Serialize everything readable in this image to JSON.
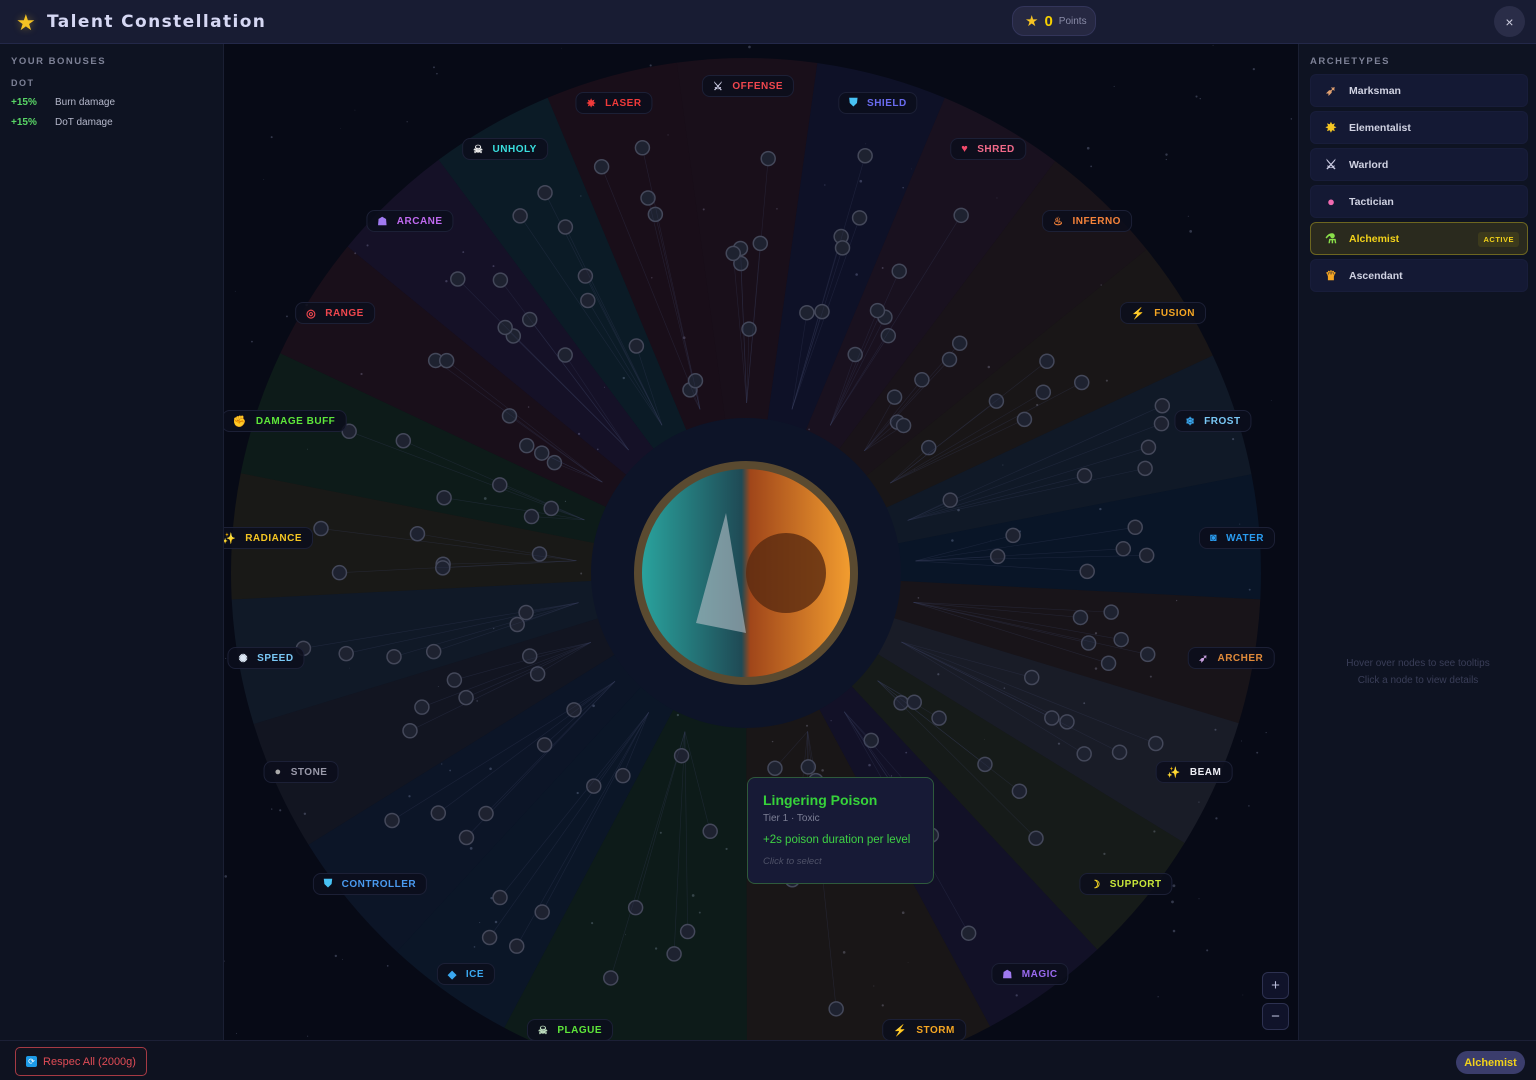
{
  "header": {
    "title": "Talent Constellation",
    "logo_icon": "star-icon",
    "points_value": "0",
    "points_label": "Points",
    "close_label": "×"
  },
  "bonuses": {
    "title": "YOUR BONUSES",
    "group": "DOT",
    "items": [
      {
        "value": "+15%",
        "label": "Burn damage"
      },
      {
        "value": "+15%",
        "label": "DoT damage"
      }
    ]
  },
  "categories": [
    {
      "name": "OFFENSE",
      "color": "#f0474e",
      "icon": "crossed-swords-icon",
      "glyph": "⚔",
      "icon_color": "#c9c9e0"
    },
    {
      "name": "SHIELD",
      "color": "#6a6cf0",
      "icon": "shield-icon",
      "glyph": "⛊",
      "icon_color": "#48c2f4"
    },
    {
      "name": "SHRED",
      "color": "#f26a8a",
      "icon": "heart-icon",
      "glyph": "♥",
      "icon_color": "#f24a6a"
    },
    {
      "name": "INFERNO",
      "color": "#f5833a",
      "icon": "fire-icon",
      "glyph": "♨",
      "icon_color": "#f5833a"
    },
    {
      "name": "FUSION",
      "color": "#f5a623",
      "icon": "lightning-icon",
      "glyph": "⚡",
      "icon_color": "#f5c623"
    },
    {
      "name": "FROST",
      "color": "#7ac8f5",
      "icon": "snowflake-icon",
      "glyph": "❄",
      "icon_color": "#3aa8f0"
    },
    {
      "name": "WATER",
      "color": "#2a9cf0",
      "icon": "wave-icon",
      "glyph": "◙",
      "icon_color": "#2a9cf0"
    },
    {
      "name": "ARCHER",
      "color": "#e08a3a",
      "icon": "bow-arrow-icon",
      "glyph": "➶",
      "icon_color": "#c9a0e0"
    },
    {
      "name": "BEAM",
      "color": "#eeeef5",
      "icon": "sparkles-icon",
      "glyph": "✨",
      "icon_color": "#f5c623"
    },
    {
      "name": "SUPPORT",
      "color": "#c8e63a",
      "icon": "banana-icon",
      "glyph": "☽",
      "icon_color": "#f5d623"
    },
    {
      "name": "MAGIC",
      "color": "#9a6af0",
      "icon": "wizard-icon",
      "glyph": "☗",
      "icon_color": "#a07af0"
    },
    {
      "name": "STORM",
      "color": "#f5a623",
      "icon": "lightning-icon",
      "glyph": "⚡",
      "icon_color": "#f5c623"
    },
    {
      "name": "PLAGUE",
      "color": "#5ee63a",
      "icon": "skull-icon",
      "glyph": "☠",
      "icon_color": "#c0e0c0"
    },
    {
      "name": "ICE",
      "color": "#3aa8f0",
      "icon": "ice-cube-icon",
      "glyph": "◆",
      "icon_color": "#3aa8f0"
    },
    {
      "name": "CONTROLLER",
      "color": "#4a9af0",
      "icon": "shield-icon",
      "glyph": "⛊",
      "icon_color": "#48c2f4"
    },
    {
      "name": "STONE",
      "color": "#9a9aaa",
      "icon": "rock-icon",
      "glyph": "●",
      "icon_color": "#aaaaaa"
    },
    {
      "name": "SPEED",
      "color": "#7ac8f5",
      "icon": "dash-icon",
      "glyph": "✺",
      "icon_color": "#dde8f5"
    },
    {
      "name": "RADIANCE",
      "color": "#f5c623",
      "icon": "sparkles-icon",
      "glyph": "✨",
      "icon_color": "#f5c623"
    },
    {
      "name": "DAMAGE BUFF",
      "color": "#5ee63a",
      "icon": "flexed-arm-icon",
      "glyph": "✊",
      "icon_color": "#f5c623"
    },
    {
      "name": "RANGE",
      "color": "#f0474e",
      "icon": "target-icon",
      "glyph": "◎",
      "icon_color": "#f0474e"
    },
    {
      "name": "ARCANE",
      "color": "#c06af0",
      "icon": "mage-icon",
      "glyph": "☗",
      "icon_color": "#a07af0"
    },
    {
      "name": "UNHOLY",
      "color": "#3ae0e0",
      "icon": "skull-icon",
      "glyph": "☠",
      "icon_color": "#eeeeee"
    },
    {
      "name": "LASER",
      "color": "#f03a3a",
      "icon": "burst-icon",
      "glyph": "✸",
      "icon_color": "#f03a3a"
    }
  ],
  "tooltip": {
    "name": "Lingering Poison",
    "subtitle": "Tier 1 · Toxic",
    "effect": "+2s poison duration per level",
    "hint": "Click to select"
  },
  "zoom": {
    "in": "+",
    "out": "−"
  },
  "archetypes": {
    "title": "ARCHETYPES",
    "items": [
      {
        "label": "Marksman",
        "icon": "bow-arrow-icon",
        "glyph": "➶",
        "icon_color": "#e0a070"
      },
      {
        "label": "Elementalist",
        "icon": "sparkle-star-icon",
        "glyph": "✸",
        "icon_color": "#f5c623"
      },
      {
        "label": "Warlord",
        "icon": "crossed-swords-icon",
        "glyph": "⚔",
        "icon_color": "#c9c9e0"
      },
      {
        "label": "Tactician",
        "icon": "brain-icon",
        "glyph": "●",
        "icon_color": "#f06ab0"
      },
      {
        "label": "Alchemist",
        "icon": "test-tube-icon",
        "glyph": "⚗",
        "icon_color": "#8ae04a",
        "active": true,
        "badge": "ACTIVE"
      },
      {
        "label": "Ascendant",
        "icon": "crown-icon",
        "glyph": "♛",
        "icon_color": "#f5a623"
      }
    ]
  },
  "hints": [
    "Hover over nodes to see tooltips",
    "Click a node to view details"
  ],
  "footer": {
    "respec_label": "Respec All (2000g)",
    "respec_icon": "refresh-icon",
    "active_archetype": "Alchemist"
  },
  "colors": {
    "accent": "#f6c324",
    "positive": "#59d666",
    "danger": "#e04c56"
  }
}
